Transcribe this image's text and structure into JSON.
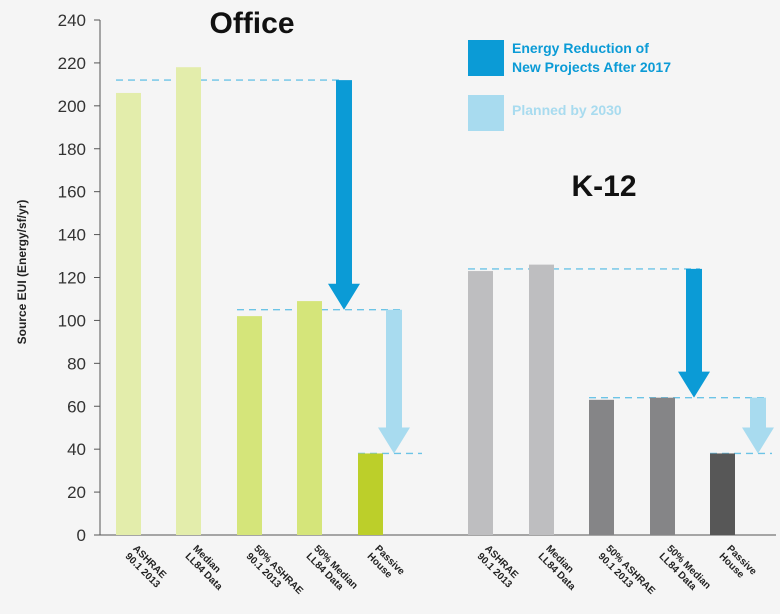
{
  "chart_data": {
    "type": "bar",
    "ylabel": "Source EUI (Energy/sf/yr)",
    "ylim": [
      0,
      240
    ],
    "yticks": [
      0,
      20,
      40,
      60,
      80,
      100,
      120,
      140,
      160,
      180,
      200,
      220,
      240
    ],
    "grid": false,
    "legend": {
      "placement": "top-right",
      "entries": [
        {
          "label_lines": [
            "Energy Reduction of",
            "New Projects After 2017"
          ],
          "color": "#0b9bd6"
        },
        {
          "label_lines": [
            "Planned by 2030"
          ],
          "color": "#a8dbef"
        }
      ]
    },
    "groups": [
      {
        "title": "Office",
        "bars": [
          {
            "label_lines": [
              "ASHRAE",
              "90.1 2013"
            ],
            "value": 206,
            "color": "#e3edab"
          },
          {
            "label_lines": [
              "Median",
              "LL84 Data"
            ],
            "value": 218,
            "color": "#e3edab"
          },
          {
            "label_lines": [
              "50% ASHRAE",
              "90.1 2013"
            ],
            "value": 102,
            "color": "#d5e57a"
          },
          {
            "label_lines": [
              "50% Median",
              "LL84 Data"
            ],
            "value": 109,
            "color": "#d5e57a"
          },
          {
            "label_lines": [
              "Passive",
              "House"
            ],
            "value": 38,
            "color": "#bccf2a"
          }
        ],
        "reference_lines": [
          212,
          105,
          38
        ],
        "reduction_arrows": [
          {
            "from": 212,
            "to": 105,
            "kind": "Energy Reduction of New Projects After 2017"
          },
          {
            "from": 105,
            "to": 38,
            "kind": "Planned by 2030"
          }
        ]
      },
      {
        "title": "K-12",
        "bars": [
          {
            "label_lines": [
              "ASHRAE",
              "90.1 2013"
            ],
            "value": 123,
            "color": "#bebec0"
          },
          {
            "label_lines": [
              "Median",
              "LL84 Data"
            ],
            "value": 126,
            "color": "#bebec0"
          },
          {
            "label_lines": [
              "50% ASHRAE",
              "90.1 2013"
            ],
            "value": 63,
            "color": "#858587"
          },
          {
            "label_lines": [
              "50% Median",
              "LL84 Data"
            ],
            "value": 64,
            "color": "#858587"
          },
          {
            "label_lines": [
              "Passive",
              "House"
            ],
            "value": 38,
            "color": "#575757"
          }
        ],
        "reference_lines": [
          124,
          64,
          38
        ],
        "reduction_arrows": [
          {
            "from": 124,
            "to": 64,
            "kind": "Energy Reduction of New Projects After 2017"
          },
          {
            "from": 64,
            "to": 38,
            "kind": "Planned by 2030"
          }
        ]
      }
    ]
  }
}
